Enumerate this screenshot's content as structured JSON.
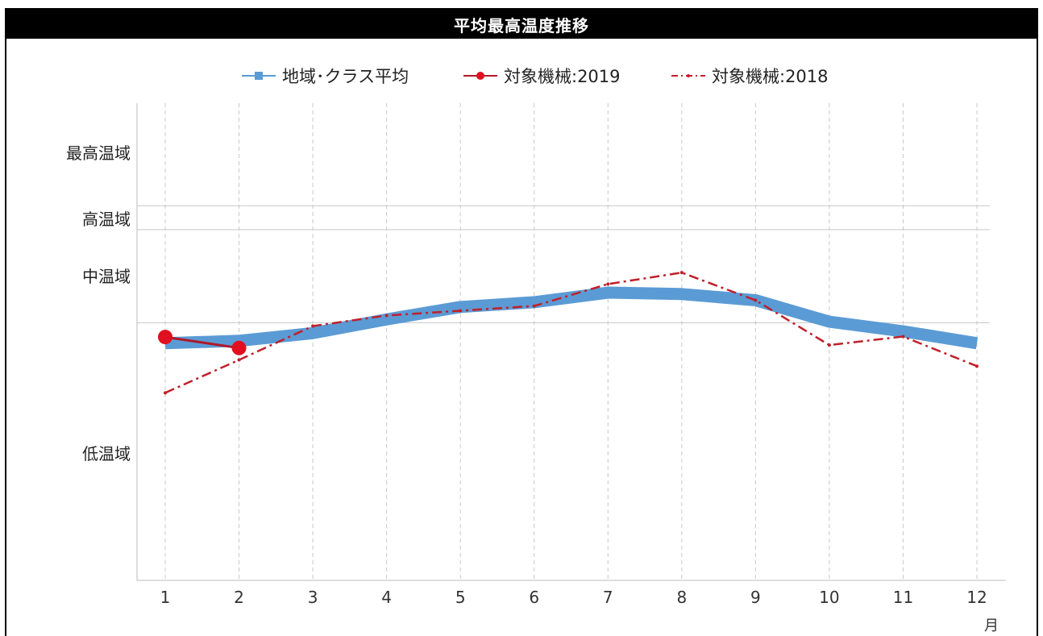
{
  "title": "平均最高温度推移",
  "chart_data": {
    "type": "line",
    "title": "平均最高温度推移",
    "x_unit_label": "月",
    "categories": [
      "1",
      "2",
      "3",
      "4",
      "5",
      "6",
      "7",
      "8",
      "9",
      "10",
      "11",
      "12"
    ],
    "band_labels": [
      "最高温域",
      "高温域",
      "中温域",
      "低温域"
    ],
    "y_scale_note": "y values expressed as fraction of plot height from bottom (0) to top (1); band boundaries at 0.54, 0.735, 0.785",
    "band_boundaries": [
      0.54,
      0.735,
      0.785
    ],
    "ylim": [
      0,
      1
    ],
    "grid": true,
    "legend_position": "top",
    "series": [
      {
        "name": "地域･クラス平均",
        "color": "#5b9bd5",
        "style": "thick-solid",
        "values": [
          0.497,
          0.502,
          0.518,
          0.547,
          0.573,
          0.583,
          0.603,
          0.6,
          0.587,
          0.542,
          0.522,
          0.497
        ]
      },
      {
        "name": "対象機械:2019",
        "color": "#e01020",
        "style": "solid-markers",
        "values": [
          0.51,
          0.487,
          null,
          null,
          null,
          null,
          null,
          null,
          null,
          null,
          null,
          null
        ]
      },
      {
        "name": "対象機械:2018",
        "color": "#c0202a",
        "style": "dash-dot",
        "values": [
          0.393,
          0.462,
          0.533,
          0.555,
          0.565,
          0.575,
          0.621,
          0.645,
          0.587,
          0.493,
          0.511,
          0.449
        ]
      }
    ]
  }
}
